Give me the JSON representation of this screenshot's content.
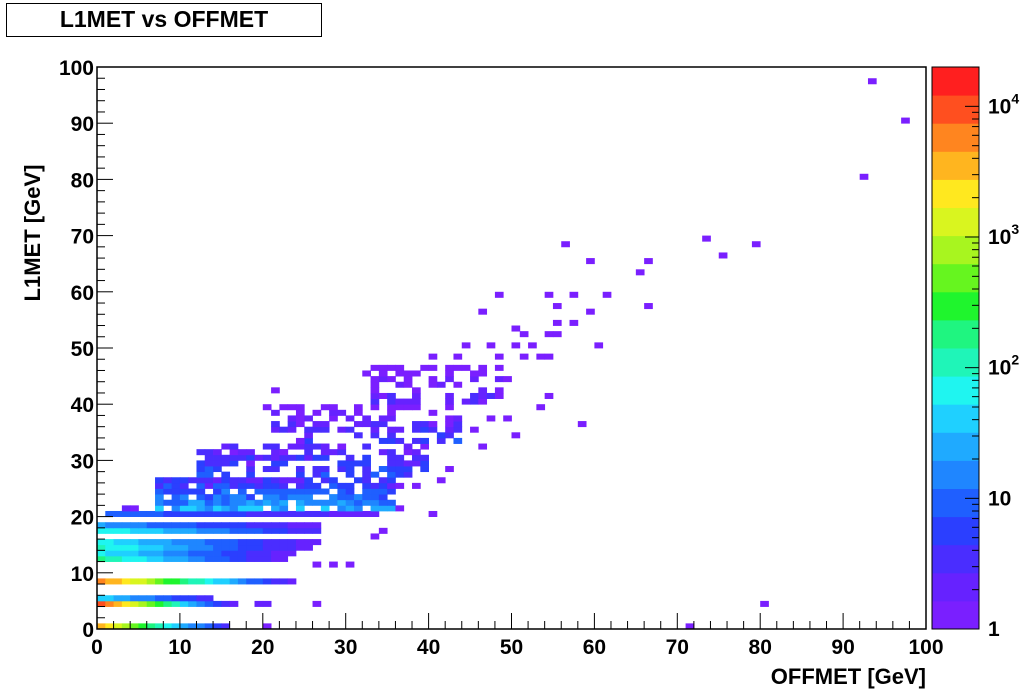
{
  "chart_data": {
    "type": "heatmap",
    "title": "L1MET vs OFFMET",
    "xlabel": "OFFMET [GeV]",
    "ylabel": "L1MET [GeV]",
    "xlim": [
      0,
      100
    ],
    "ylim": [
      0,
      100
    ],
    "bin_width": [
      1,
      1
    ],
    "x_ticks": [
      "0",
      "10",
      "20",
      "30",
      "40",
      "50",
      "60",
      "70",
      "80",
      "90",
      "100"
    ],
    "y_ticks": [
      "0",
      "10",
      "20",
      "30",
      "40",
      "50",
      "60",
      "70",
      "80",
      "90",
      "100"
    ],
    "z_scale": "log",
    "zlim": [
      1,
      20000
    ],
    "z_ticks": [
      {
        "value": 1,
        "label": "1"
      },
      {
        "value": 10,
        "label": "10"
      },
      {
        "value": 100,
        "label": "10",
        "exp": "2"
      },
      {
        "value": 1000,
        "label": "10",
        "exp": "3"
      },
      {
        "value": 10000,
        "label": "10",
        "exp": "4"
      }
    ],
    "palette": [
      "#7a1fff",
      "#6622ff",
      "#4a2dff",
      "#2b3fff",
      "#1f5fff",
      "#1f86ff",
      "#1faaff",
      "#1fd0ff",
      "#1ff5f0",
      "#1ff5b8",
      "#1ff580",
      "#1ff52d",
      "#66f51f",
      "#a8f51f",
      "#d9f51f",
      "#ffe81f",
      "#ffb51f",
      "#ff851f",
      "#ff4f1f",
      "#ff1f1f"
    ],
    "bands": [
      {
        "y": 0,
        "x0": 0,
        "x1": 16,
        "z0": 3000,
        "z1": 3
      },
      {
        "y": 4,
        "x0": 0,
        "x1": 17,
        "z0": 12000,
        "z1": 2
      },
      {
        "y": 5,
        "x0": 0,
        "x1": 14,
        "z0": 40,
        "z1": 3
      },
      {
        "y": 8,
        "x0": 0,
        "x1": 24,
        "z0": 6000,
        "z1": 2
      },
      {
        "y": 12,
        "x0": 0,
        "x1": 23,
        "z0": 150,
        "z1": 2
      },
      {
        "y": 13,
        "x0": 0,
        "x1": 24,
        "z0": 60,
        "z1": 2
      },
      {
        "y": 14,
        "x0": 0,
        "x1": 26,
        "z0": 100,
        "z1": 2
      },
      {
        "y": 15,
        "x0": 0,
        "x1": 27,
        "z0": 60,
        "z1": 2
      },
      {
        "y": 17,
        "x0": 0,
        "x1": 27,
        "z0": 80,
        "z1": 3
      },
      {
        "y": 18,
        "x0": 0,
        "x1": 27,
        "z0": 20,
        "z1": 2
      },
      {
        "y": 20,
        "x0": 1,
        "x1": 34,
        "z0": 10,
        "z1": 2
      },
      {
        "y": 21,
        "x0": 3,
        "x1": 5,
        "z0": 2,
        "z1": 1
      }
    ],
    "scatter_regions": [
      {
        "x0": 7,
        "x1": 36,
        "y0": 21,
        "y1": 27,
        "density": 0.85,
        "z0": 30,
        "z1": 3
      },
      {
        "x0": 12,
        "x1": 40,
        "y0": 27,
        "y1": 33,
        "density": 0.55,
        "z0": 8,
        "z1": 2
      },
      {
        "x0": 21,
        "x1": 44,
        "y0": 33,
        "y1": 40,
        "density": 0.45,
        "z0": 6,
        "z1": 1
      },
      {
        "x0": 33,
        "x1": 49,
        "y0": 40,
        "y1": 47,
        "density": 0.4,
        "z0": 3,
        "z1": 1
      }
    ],
    "points": [
      {
        "x": 93.5,
        "y": 97.5,
        "z": 1
      },
      {
        "x": 97.5,
        "y": 90.5,
        "z": 1
      },
      {
        "x": 92.5,
        "y": 80.5,
        "z": 1
      },
      {
        "x": 73.5,
        "y": 69.5,
        "z": 1
      },
      {
        "x": 79.5,
        "y": 68.5,
        "z": 1
      },
      {
        "x": 56.5,
        "y": 68.5,
        "z": 1
      },
      {
        "x": 75.5,
        "y": 66.5,
        "z": 1
      },
      {
        "x": 59.5,
        "y": 65.5,
        "z": 1
      },
      {
        "x": 66.5,
        "y": 65.5,
        "z": 1
      },
      {
        "x": 65.5,
        "y": 63.5,
        "z": 1
      },
      {
        "x": 48.5,
        "y": 59.5,
        "z": 1
      },
      {
        "x": 54.5,
        "y": 59.5,
        "z": 1
      },
      {
        "x": 57.5,
        "y": 59.5,
        "z": 1
      },
      {
        "x": 61.5,
        "y": 59.5,
        "z": 1
      },
      {
        "x": 55.5,
        "y": 57.5,
        "z": 1
      },
      {
        "x": 66.5,
        "y": 57.5,
        "z": 1
      },
      {
        "x": 46.5,
        "y": 56.5,
        "z": 1
      },
      {
        "x": 59.5,
        "y": 56.5,
        "z": 1
      },
      {
        "x": 55.5,
        "y": 54.5,
        "z": 1
      },
      {
        "x": 57.5,
        "y": 54.5,
        "z": 1
      },
      {
        "x": 50.5,
        "y": 53.5,
        "z": 1
      },
      {
        "x": 51.5,
        "y": 52.5,
        "z": 1
      },
      {
        "x": 54.5,
        "y": 52.5,
        "z": 1
      },
      {
        "x": 55.5,
        "y": 52.5,
        "z": 1
      },
      {
        "x": 44.5,
        "y": 50.5,
        "z": 1
      },
      {
        "x": 47.5,
        "y": 50.5,
        "z": 1
      },
      {
        "x": 50.5,
        "y": 50.5,
        "z": 1
      },
      {
        "x": 52.5,
        "y": 50.5,
        "z": 1
      },
      {
        "x": 60.5,
        "y": 50.5,
        "z": 1
      },
      {
        "x": 40.5,
        "y": 48.5,
        "z": 1
      },
      {
        "x": 43.5,
        "y": 48.5,
        "z": 1
      },
      {
        "x": 48.5,
        "y": 48.5,
        "z": 1
      },
      {
        "x": 51.5,
        "y": 48.5,
        "z": 1
      },
      {
        "x": 53.5,
        "y": 48.5,
        "z": 1
      },
      {
        "x": 54.5,
        "y": 48.5,
        "z": 1
      },
      {
        "x": 32.5,
        "y": 45.5,
        "z": 1
      },
      {
        "x": 49.5,
        "y": 44.5,
        "z": 1
      },
      {
        "x": 21.5,
        "y": 42.5,
        "z": 1
      },
      {
        "x": 54.5,
        "y": 41.5,
        "z": 1
      },
      {
        "x": 20.5,
        "y": 39.5,
        "z": 1
      },
      {
        "x": 53.5,
        "y": 39.5,
        "z": 1
      },
      {
        "x": 58.5,
        "y": 36.5,
        "z": 1
      },
      {
        "x": 50.5,
        "y": 34.5,
        "z": 1
      },
      {
        "x": 49.5,
        "y": 37.5,
        "z": 1
      },
      {
        "x": 47.5,
        "y": 37.5,
        "z": 1
      },
      {
        "x": 45.5,
        "y": 35.5,
        "z": 1
      },
      {
        "x": 46.5,
        "y": 32.5,
        "z": 1
      },
      {
        "x": 42.5,
        "y": 28.5,
        "z": 1
      },
      {
        "x": 41.5,
        "y": 26.5,
        "z": 1
      },
      {
        "x": 36.5,
        "y": 25.5,
        "z": 1
      },
      {
        "x": 38.5,
        "y": 25.5,
        "z": 1
      },
      {
        "x": 36.5,
        "y": 21.5,
        "z": 1
      },
      {
        "x": 40.5,
        "y": 20.5,
        "z": 1
      },
      {
        "x": 33.5,
        "y": 16.5,
        "z": 1
      },
      {
        "x": 34.5,
        "y": 17.5,
        "z": 1
      },
      {
        "x": 28.5,
        "y": 11.5,
        "z": 1
      },
      {
        "x": 26.5,
        "y": 11.5,
        "z": 1
      },
      {
        "x": 30.5,
        "y": 11.5,
        "z": 1
      },
      {
        "x": 26.5,
        "y": 4.5,
        "z": 1
      },
      {
        "x": 80.5,
        "y": 4.5,
        "z": 1
      },
      {
        "x": 71.5,
        "y": 0.5,
        "z": 1
      },
      {
        "x": 20.5,
        "y": 0.5,
        "z": 1
      },
      {
        "x": 19.5,
        "y": 4.5,
        "z": 2
      },
      {
        "x": 20.5,
        "y": 4.5,
        "z": 2
      },
      {
        "x": 18.5,
        "y": 29.5,
        "z": 1
      },
      {
        "x": 22.5,
        "y": 31.5,
        "z": 1
      },
      {
        "x": 24.5,
        "y": 33.5,
        "z": 1
      }
    ]
  }
}
